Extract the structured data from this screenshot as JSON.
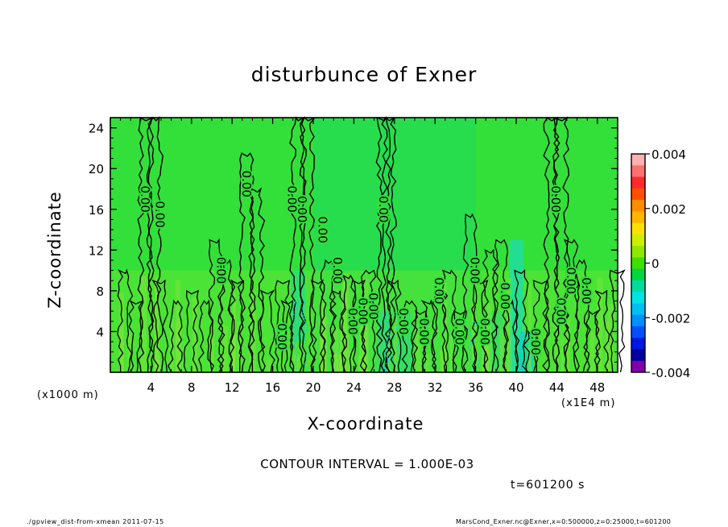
{
  "chart_data": {
    "type": "heatmap",
    "title": "disturbunce of Exner",
    "xlabel": "X-coordinate",
    "ylabel": "Z-coordinate",
    "x_unit_label": "(x1000 m)",
    "x_scale_label": "(x1E4 m)",
    "xlim": [
      0,
      50
    ],
    "ylim": [
      0,
      25
    ],
    "x_ticks": [
      4,
      8,
      12,
      16,
      20,
      24,
      28,
      32,
      36,
      40,
      44,
      48
    ],
    "y_ticks": [
      4,
      8,
      12,
      16,
      20,
      24
    ],
    "colorbar": {
      "range": [
        -0.004,
        0.004
      ],
      "tick_labels": [
        "0.004",
        "0.002",
        "0",
        "-0.002",
        "-0.004"
      ],
      "colors": [
        "#ffb0b0",
        "#ff7070",
        "#ff2a2a",
        "#ff5000",
        "#ff8c00",
        "#ffb400",
        "#ffe000",
        "#ccee00",
        "#90e800",
        "#3ee000",
        "#00d640",
        "#00dca0",
        "#00e4e4",
        "#00c0f0",
        "#0090ff",
        "#0050ff",
        "#0018e0",
        "#0000a0",
        "#8000a8"
      ]
    },
    "contour_labels": [
      "0.00"
    ],
    "background_field_color": "#33e03a"
  },
  "contour_interval": "CONTOUR INTERVAL = 1.000E-03",
  "timestamp": "t=601200 s",
  "footer": {
    "left": "./gpview_dist-from-xmean   2011-07-15",
    "right": "MarsCond_Exner.nc@Exner,x=0:500000,z=0:25000,t=601200"
  }
}
